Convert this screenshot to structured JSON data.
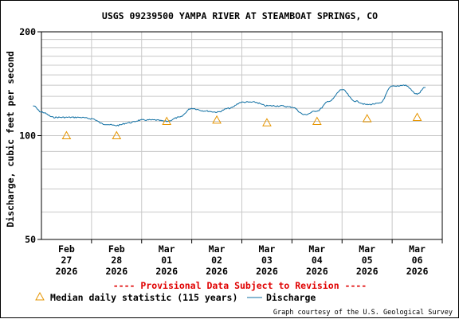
{
  "chart_data": {
    "type": "line",
    "title": "USGS 09239500 YAMPA RIVER AT STEAMBOAT SPRINGS, CO",
    "ylabel": "Discharge, cubic feet per second",
    "yscale": "log",
    "ylim": [
      50,
      200
    ],
    "yticks": [
      "200",
      "100",
      "50"
    ],
    "xlim": [
      "2026-02-27T00:00",
      "2026-03-07T00:00"
    ],
    "xticks": [
      {
        "line1": "Feb",
        "line2": "27",
        "line3": "2026"
      },
      {
        "line1": "Feb",
        "line2": "28",
        "line3": "2026"
      },
      {
        "line1": "Mar",
        "line2": "01",
        "line3": "2026"
      },
      {
        "line1": "Mar",
        "line2": "02",
        "line3": "2026"
      },
      {
        "line1": "Mar",
        "line2": "03",
        "line3": "2026"
      },
      {
        "line1": "Mar",
        "line2": "04",
        "line3": "2026"
      },
      {
        "line1": "Mar",
        "line2": "05",
        "line3": "2026"
      },
      {
        "line1": "Mar",
        "line2": "06",
        "line3": "2026"
      }
    ],
    "grid": true,
    "series": [
      {
        "name": "Discharge",
        "color": "#0f6fa3",
        "x": [
          "2026-02-26T20:00",
          "2026-02-27T00:00",
          "2026-02-27T06:00",
          "2026-02-27T12:00",
          "2026-02-27T18:00",
          "2026-02-28T00:00",
          "2026-02-28T06:00",
          "2026-02-28T12:00",
          "2026-02-28T18:00",
          "2026-03-01T00:00",
          "2026-03-01T06:00",
          "2026-03-01T12:00",
          "2026-03-01T18:00",
          "2026-03-02T00:00",
          "2026-03-02T06:00",
          "2026-03-02T12:00",
          "2026-03-02T18:00",
          "2026-03-03T00:00",
          "2026-03-03T06:00",
          "2026-03-03T12:00",
          "2026-03-03T18:00",
          "2026-03-04T00:00",
          "2026-03-04T06:00",
          "2026-03-04T12:00",
          "2026-03-04T18:00",
          "2026-03-05T00:00",
          "2026-03-05T06:00",
          "2026-03-05T12:00",
          "2026-03-05T18:00",
          "2026-03-06T00:00",
          "2026-03-06T06:00",
          "2026-03-06T12:00",
          "2026-03-06T16:00"
        ],
        "y": [
          122,
          117,
          113,
          113,
          113,
          112,
          108,
          107,
          109,
          111,
          111,
          110,
          113,
          120,
          118,
          117,
          120,
          125,
          125,
          122,
          122,
          121,
          115,
          118,
          126,
          136,
          126,
          123,
          124,
          139,
          140,
          132,
          138
        ]
      },
      {
        "name": "Median daily statistic (115 years)",
        "color": "#e69500",
        "marker": "triangle",
        "x": [
          "2026-02-27T12:00",
          "2026-02-28T12:00",
          "2026-03-01T12:00",
          "2026-03-02T12:00",
          "2026-03-03T12:00",
          "2026-03-04T12:00",
          "2026-03-05T12:00",
          "2026-03-06T12:00"
        ],
        "y": [
          100,
          100,
          110,
          111,
          109,
          110,
          112,
          113
        ]
      }
    ],
    "legend": "bottom"
  },
  "provisional_note": "---- Provisional Data Subject to Revision ----",
  "credit": "Graph courtesy of the U.S. Geological Survey"
}
